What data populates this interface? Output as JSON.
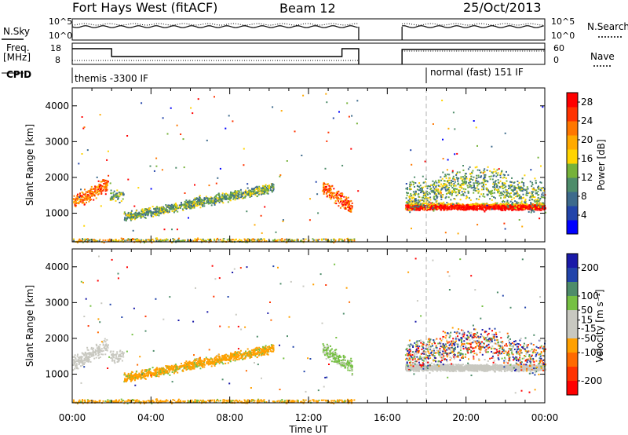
{
  "header": {
    "station": "Fort Hays West (fitACF)",
    "beam": "Beam 12",
    "date": "25/Oct/2013"
  },
  "labels": {
    "nsky": "N.Sky",
    "nsearch": "N.Search",
    "freq_line1": "Freq.",
    "freq_line2": "[MHz]",
    "nave": "Nave",
    "cpid": "CPID",
    "cpid_left": "themis -3300 IF",
    "cpid_right": "normal (fast) 151 IF",
    "nsky_ticks": [
      "10^5",
      "10^0"
    ],
    "freq_ticks": [
      "18",
      "8"
    ],
    "nave_ticks": [
      "60",
      "0"
    ]
  },
  "colors": {
    "power": [
      "#0000ff",
      "#2244aa",
      "#3d6a8c",
      "#4e8c6a",
      "#76b23a",
      "#ffd400",
      "#ffaa00",
      "#ff7700",
      "#ff3300",
      "#ff0000"
    ],
    "velocity": [
      "#1a1aa8",
      "#2244aa",
      "#4e8c6a",
      "#76c043",
      "#c8c8c0",
      "#c8c8c0",
      "#ffa000",
      "#ff6a00",
      "#ff3300",
      "#ff0000"
    ]
  },
  "chart_data": [
    {
      "type": "heatmap",
      "title": "Power",
      "xlabel": "",
      "ylabel": "Slant Range [km]",
      "xlim": [
        "00:00",
        "00:00"
      ],
      "ylim": [
        200,
        4500
      ],
      "x_ticks": [
        "00:00",
        "04:00",
        "08:00",
        "12:00",
        "16:00",
        "20:00",
        "00:00"
      ],
      "y_ticks": [
        1000,
        2000,
        3000,
        4000
      ],
      "colorbar": {
        "label": "Power [dB]",
        "ticks": [
          4,
          8,
          12,
          16,
          20,
          24,
          28
        ],
        "range": [
          0,
          30
        ]
      }
    },
    {
      "type": "heatmap",
      "title": "Velocity",
      "xlabel": "Time UT",
      "ylabel": "Slant Range [km]",
      "xlim": [
        "00:00",
        "00:00"
      ],
      "ylim": [
        200,
        4500
      ],
      "x_ticks": [
        "00:00",
        "04:00",
        "08:00",
        "12:00",
        "16:00",
        "20:00",
        "00:00"
      ],
      "y_ticks": [
        1000,
        2000,
        3000,
        4000
      ],
      "colorbar": {
        "label": "Velocity [m s⁻¹]",
        "ticks": [
          200,
          100,
          50,
          15,
          -15,
          -50,
          -100,
          -200
        ],
        "range": [
          -250,
          250
        ]
      }
    }
  ]
}
